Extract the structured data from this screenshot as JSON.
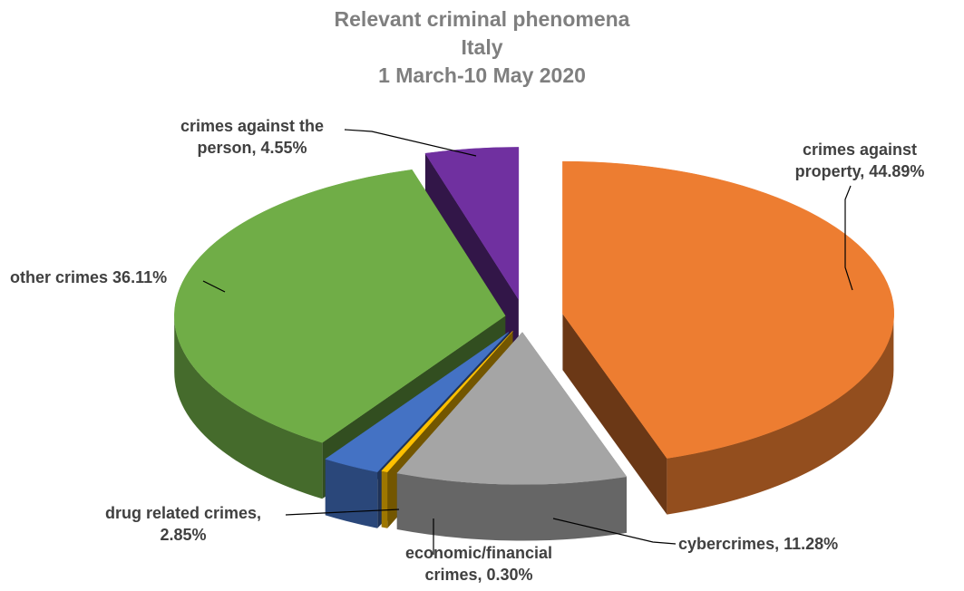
{
  "chart_data": {
    "type": "pie",
    "title_lines": [
      "Relevant criminal phenomena",
      "Italy",
      "1 March-10 May 2020"
    ],
    "series": [
      {
        "labels": [
          "crimes against property",
          "cybercrimes",
          "economic/financial crimes",
          "drug related crimes",
          "other crimes",
          "crimes against the person"
        ],
        "values": [
          44.89,
          11.28,
          0.3,
          2.85,
          36.11,
          4.55
        ],
        "data_labels": [
          [
            "crimes against",
            "property, 44.89%"
          ],
          [
            "cybercrimes, 11.28%"
          ],
          [
            "economic/financial",
            "crimes, 0.30%"
          ],
          [
            "drug related crimes,",
            "2.85%"
          ],
          [
            "other crimes 36.11%"
          ],
          [
            "crimes against the",
            "person, 4.55%"
          ]
        ]
      }
    ],
    "colors": [
      "#ED7D31",
      "#A5A5A5",
      "#FFC000",
      "#4472C4",
      "#70AD47",
      "#7030A0"
    ],
    "style": "3d-exploded",
    "legend": "none"
  }
}
